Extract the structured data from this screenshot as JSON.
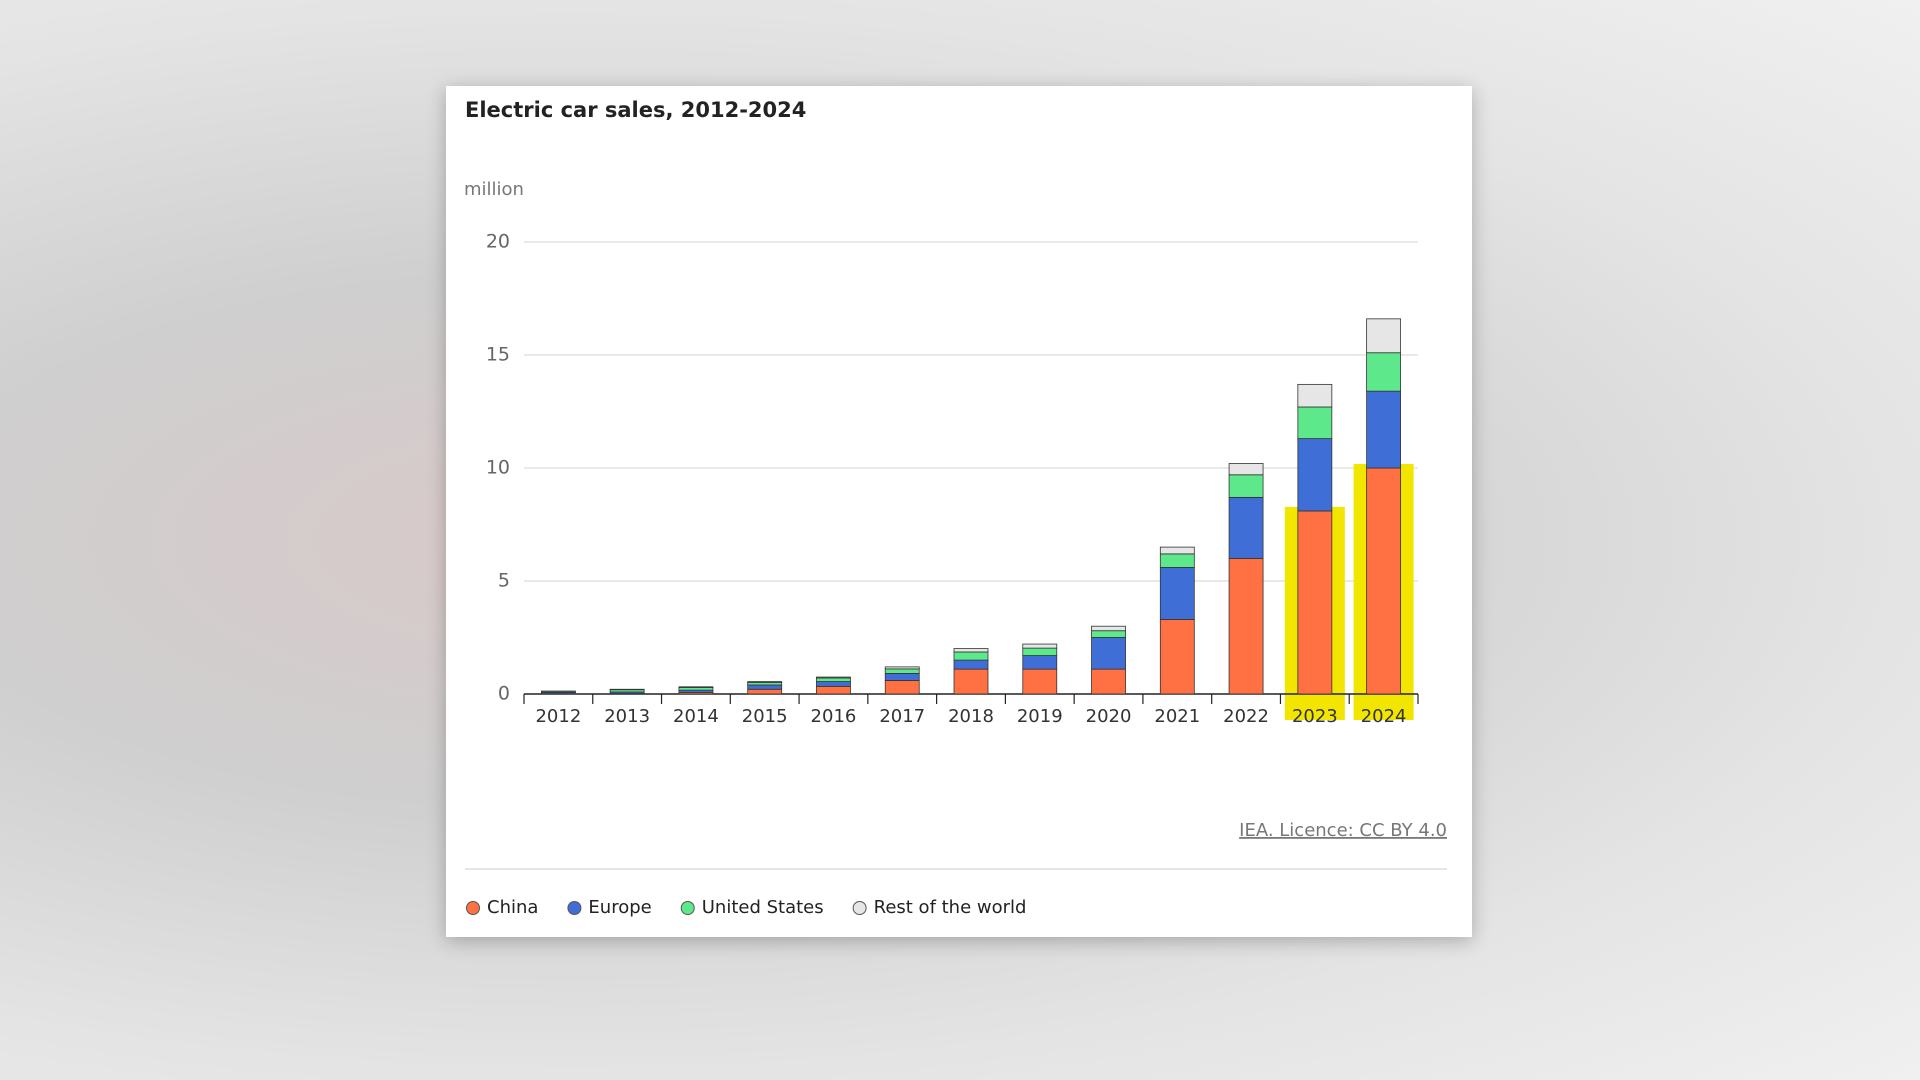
{
  "chart_data": {
    "type": "stacked_bar",
    "title": "Electric car sales, 2012-2024",
    "y_unit": "million",
    "categories": [
      "2012",
      "2013",
      "2014",
      "2015",
      "2016",
      "2017",
      "2018",
      "2019",
      "2020",
      "2021",
      "2022",
      "2023",
      "2024"
    ],
    "series": [
      {
        "name": "China",
        "color": "#ff7043",
        "values": [
          0.01,
          0.02,
          0.07,
          0.21,
          0.34,
          0.6,
          1.1,
          1.1,
          1.1,
          3.3,
          6.0,
          8.1,
          10.0
        ]
      },
      {
        "name": "Europe",
        "color": "#3f6fd6",
        "values": [
          0.06,
          0.07,
          0.1,
          0.19,
          0.21,
          0.31,
          0.4,
          0.6,
          1.4,
          2.3,
          2.7,
          3.2,
          3.4
        ]
      },
      {
        "name": "United States",
        "color": "#5ee88c",
        "values": [
          0.05,
          0.1,
          0.12,
          0.11,
          0.16,
          0.2,
          0.36,
          0.33,
          0.3,
          0.6,
          1.0,
          1.4,
          1.7
        ]
      },
      {
        "name": "Rest of the world",
        "color": "#e6e6e6",
        "values": [
          0.01,
          0.02,
          0.03,
          0.04,
          0.04,
          0.09,
          0.15,
          0.18,
          0.2,
          0.3,
          0.5,
          1.0,
          1.5
        ]
      }
    ],
    "ylim": [
      0,
      20
    ],
    "yticks": [
      0,
      5,
      10,
      15,
      20
    ],
    "grid": true,
    "highlight_color": "#f2e600",
    "source": "IEA. Licence: CC BY 4.0"
  }
}
